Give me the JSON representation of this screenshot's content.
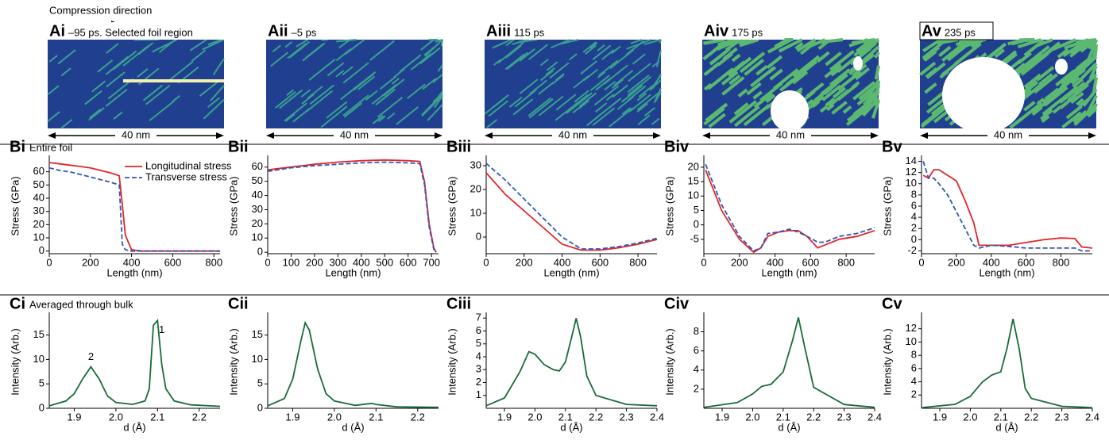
{
  "header": {
    "arrow_label": "Compression direction"
  },
  "panels_a": [
    {
      "label": "Ai",
      "time": "–95 ps. Selected foil region",
      "scale": "40 nm"
    },
    {
      "label": "Aii",
      "time": "–5 ps",
      "scale": "40 nm"
    },
    {
      "label": "Aiii",
      "time": "115 ps",
      "scale": "40 nm"
    },
    {
      "label": "Aiv",
      "time": "175 ps",
      "scale": "40 nm"
    },
    {
      "label": "Av",
      "time": "235 ps",
      "scale": "40 nm"
    }
  ],
  "chart_data": [
    {
      "type": "line",
      "title": "Bi",
      "subtitle": "Entire foil",
      "x_label": "Length (nm)",
      "y_label": "Stress (GPa)",
      "legend": "upper right",
      "x": [
        0,
        50,
        100,
        150,
        200,
        250,
        300,
        340,
        355,
        370,
        400,
        450,
        500,
        600,
        700,
        830
      ],
      "series": [
        {
          "name": "Longitudinal stress",
          "color": "#e0262b",
          "style": "solid",
          "values": [
            67,
            66,
            65,
            64,
            63,
            61,
            59,
            57,
            35,
            12,
            1,
            0,
            0,
            0,
            0,
            0
          ]
        },
        {
          "name": "Transverse stress",
          "color": "#3355b5",
          "style": "dashed",
          "values": [
            63,
            61,
            60,
            58,
            56,
            54,
            52,
            50,
            5,
            1,
            0,
            0,
            0,
            0,
            0,
            0
          ]
        }
      ],
      "xlim": [
        0,
        830
      ],
      "xticks": [
        0,
        200,
        400,
        600,
        800
      ],
      "ylim": [
        -2,
        70
      ],
      "yticks": [
        0,
        10,
        20,
        30,
        40,
        50,
        60
      ]
    },
    {
      "type": "line",
      "title": "Bii",
      "x_label": "Length (nm)",
      "y_label": "Stress (GPa)",
      "x": [
        0,
        100,
        200,
        300,
        400,
        500,
        600,
        650,
        670,
        690,
        710,
        720
      ],
      "series": [
        {
          "color": "#e0262b",
          "style": "solid",
          "values": [
            58,
            60,
            62,
            63.5,
            64.5,
            65,
            64.5,
            64,
            50,
            20,
            3,
            0
          ]
        },
        {
          "color": "#3355b5",
          "style": "dashed",
          "values": [
            57,
            59.5,
            61,
            62,
            63,
            63.5,
            63,
            62.5,
            48,
            18,
            2,
            0
          ]
        }
      ],
      "xlim": [
        0,
        730
      ],
      "xticks": [
        0,
        100,
        200,
        300,
        400,
        500,
        600,
        700
      ],
      "ylim": [
        -1,
        66
      ],
      "yticks": [
        0,
        10,
        20,
        30,
        40,
        50,
        60
      ]
    },
    {
      "type": "line",
      "title": "Biii",
      "x_label": "Length (nm)",
      "y_label": "Stress (GPa)",
      "x": [
        0,
        100,
        200,
        300,
        400,
        500,
        600,
        700,
        800,
        900
      ],
      "series": [
        {
          "color": "#e0262b",
          "style": "solid",
          "values": [
            27,
            18,
            11,
            4,
            -3,
            -5.5,
            -5.5,
            -4.5,
            -3,
            -1
          ]
        },
        {
          "color": "#3355b5",
          "style": "dashed",
          "values": [
            31,
            24,
            16,
            8,
            0,
            -5,
            -5,
            -4,
            -2.5,
            -0.5
          ]
        }
      ],
      "xlim": [
        0,
        900
      ],
      "xticks": [
        0,
        200,
        400,
        600,
        800
      ],
      "ylim": [
        -7,
        33
      ],
      "yticks": [
        0,
        10,
        20,
        30
      ]
    },
    {
      "type": "line",
      "title": "Biv",
      "x_label": "Length (nm)",
      "y_label": "Stress (GPa)",
      "x": [
        10,
        100,
        200,
        280,
        320,
        360,
        420,
        480,
        530,
        580,
        640,
        680,
        760,
        860,
        960
      ],
      "series": [
        {
          "color": "#e0262b",
          "style": "solid",
          "values": [
            19,
            5,
            -5,
            -9.5,
            -8,
            -4,
            -2.5,
            -2,
            -2,
            -4,
            -8,
            -7,
            -5,
            -4,
            -2
          ]
        },
        {
          "color": "#3355b5",
          "style": "dashed",
          "values": [
            21,
            7,
            -4,
            -9,
            -8,
            -3,
            -2.5,
            -1.5,
            -2.5,
            -4,
            -6,
            -6,
            -4,
            -3,
            -1
          ]
        }
      ],
      "xlim": [
        0,
        960
      ],
      "xticks": [
        0,
        200,
        400,
        600,
        800
      ],
      "ylim": [
        -10,
        23
      ],
      "yticks": [
        -5,
        0,
        5,
        10,
        15,
        20
      ]
    },
    {
      "type": "line",
      "title": "Bv",
      "x_label": "Length (nm)",
      "y_label": "Stress (GPa)",
      "x": [
        10,
        40,
        70,
        100,
        150,
        200,
        250,
        300,
        330,
        400,
        500,
        600,
        700,
        800,
        880,
        920,
        980
      ],
      "series": [
        {
          "color": "#e0262b",
          "style": "solid",
          "values": [
            11.5,
            11,
            12.5,
            12.5,
            11.5,
            10.5,
            7,
            3,
            -1,
            -1,
            -1,
            -0.5,
            0,
            0.3,
            0.2,
            -1.3,
            -1.5
          ]
        },
        {
          "color": "#3355b5",
          "style": "dashed",
          "values": [
            14,
            11,
            11,
            10,
            8,
            5,
            2,
            -1,
            -1.5,
            -1,
            -1.2,
            -1.5,
            -1.5,
            -1.5,
            -1.5,
            -2,
            -2
          ]
        }
      ],
      "xlim": [
        0,
        980
      ],
      "xticks": [
        0,
        200,
        400,
        600,
        800
      ],
      "ylim": [
        -2.5,
        14.5
      ],
      "yticks": [
        -2,
        0,
        2,
        4,
        6,
        8,
        10,
        12,
        14
      ]
    },
    {
      "type": "line",
      "title": "Ci",
      "subtitle": "Averaged through bulk",
      "x_label": "d (Å)",
      "y_label": "Intensity (Arb.)",
      "x": [
        1.84,
        1.88,
        1.9,
        1.92,
        1.94,
        1.96,
        1.98,
        2.0,
        2.04,
        2.07,
        2.08,
        2.09,
        2.1,
        2.11,
        2.12,
        2.14,
        2.18,
        2.25
      ],
      "series": [
        {
          "color": "#1a6b3a",
          "style": "solid",
          "values": [
            0.5,
            1.5,
            3,
            6,
            8.5,
            6,
            2.5,
            1.2,
            0.8,
            1.5,
            4,
            17,
            18,
            9,
            4,
            1.5,
            0.7,
            0.4
          ]
        }
      ],
      "annotations": [
        {
          "text": "1",
          "x": 2.11,
          "y": 16
        },
        {
          "text": "2",
          "x": 1.94,
          "y": 10.5
        }
      ],
      "xlim": [
        1.84,
        2.25
      ],
      "xticks": [
        1.9,
        {
          "value": 2.0,
          "label": "2.0"
        },
        2.1,
        2.2
      ],
      "ylim": [
        0,
        19
      ],
      "yticks": [
        0,
        5,
        10,
        15
      ]
    },
    {
      "type": "line",
      "title": "Cii",
      "x_label": "d (Å)",
      "y_label": "Intensity (Arb.)",
      "x": [
        1.84,
        1.88,
        1.9,
        1.92,
        1.93,
        1.94,
        1.96,
        1.98,
        2.0,
        2.05,
        2.09,
        2.1,
        2.15,
        2.25
      ],
      "series": [
        {
          "color": "#1a6b3a",
          "style": "solid",
          "values": [
            0.5,
            2,
            6,
            14,
            17.5,
            16,
            8,
            3,
            1.5,
            0.6,
            1,
            0.8,
            0.3,
            0.2
          ]
        }
      ],
      "xlim": [
        1.84,
        2.25
      ],
      "xticks": [
        1.9,
        {
          "value": 2.0,
          "label": "2.0"
        },
        2.1,
        2.2
      ],
      "ylim": [
        0,
        19
      ],
      "yticks": [
        0,
        5,
        10,
        15
      ]
    },
    {
      "type": "line",
      "title": "Ciii",
      "x_label": "d (Å)",
      "y_label": "Intensity (Arb.)",
      "x": [
        1.84,
        1.9,
        1.95,
        1.98,
        2.0,
        2.03,
        2.06,
        2.08,
        2.1,
        2.12,
        2.135,
        2.15,
        2.17,
        2.2,
        2.3,
        2.4
      ],
      "series": [
        {
          "color": "#1a6b3a",
          "style": "solid",
          "values": [
            0.2,
            0.8,
            2.8,
            4.4,
            4.2,
            3.4,
            3,
            2.9,
            3.6,
            5.5,
            7,
            5.5,
            2.5,
            1,
            0.3,
            0.2
          ]
        }
      ],
      "xlim": [
        1.84,
        2.4
      ],
      "xticks": [
        1.9,
        {
          "value": 2.0,
          "label": "2.0"
        },
        2.1,
        2.2,
        2.3,
        2.4
      ],
      "ylim": [
        0,
        7.2
      ],
      "yticks": [
        1,
        2,
        3,
        4,
        5,
        6,
        7
      ]
    },
    {
      "type": "line",
      "title": "Civ",
      "x_label": "d (Å)",
      "y_label": "Intensity (Arb.)",
      "x": [
        1.84,
        1.95,
        2.0,
        2.03,
        2.06,
        2.1,
        2.13,
        2.15,
        2.17,
        2.2,
        2.3,
        2.4
      ],
      "series": [
        {
          "color": "#1a6b3a",
          "style": "solid",
          "values": [
            0.1,
            0.6,
            1.5,
            2.3,
            2.5,
            3.8,
            7,
            9.5,
            6.5,
            2.2,
            0.4,
            0.1
          ]
        }
      ],
      "xlim": [
        1.84,
        2.4
      ],
      "xticks": [
        1.9,
        {
          "value": 2.0,
          "label": "2.0"
        },
        2.1,
        2.2,
        2.3,
        2.4
      ],
      "ylim": [
        0,
        9.7
      ],
      "yticks": [
        2,
        4,
        6,
        8
      ]
    },
    {
      "type": "line",
      "title": "Cv",
      "x_label": "d (Å)",
      "y_label": "Intensity (Arb.)",
      "x": [
        1.84,
        1.95,
        2.0,
        2.04,
        2.07,
        2.1,
        2.12,
        2.14,
        2.16,
        2.18,
        2.2,
        2.3,
        2.4
      ],
      "series": [
        {
          "color": "#1a6b3a",
          "style": "solid",
          "values": [
            0.1,
            0.6,
            1.8,
            4,
            5,
            5.5,
            9,
            13.5,
            9,
            3,
            1.5,
            0.3,
            0.1
          ]
        }
      ],
      "xlim": [
        1.84,
        2.4
      ],
      "xticks": [
        1.9,
        {
          "value": 2.0,
          "label": "2.0"
        },
        2.1,
        2.2,
        2.3,
        2.4
      ],
      "ylim": [
        0,
        14
      ],
      "yticks": [
        2,
        4,
        6,
        8,
        10,
        12
      ]
    }
  ]
}
